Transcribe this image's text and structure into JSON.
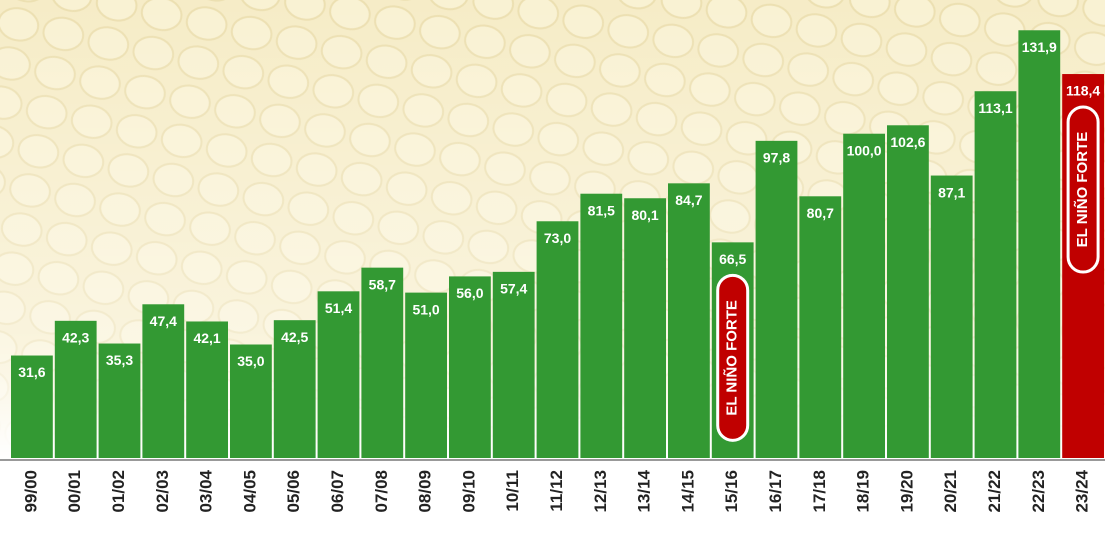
{
  "chart_data": {
    "type": "bar",
    "categories": [
      "99/00",
      "00/01",
      "01/02",
      "02/03",
      "03/04",
      "04/05",
      "05/06",
      "06/07",
      "07/08",
      "08/09",
      "09/10",
      "10/11",
      "11/12",
      "12/13",
      "13/14",
      "14/15",
      "15/16",
      "16/17",
      "17/18",
      "18/19",
      "19/20",
      "20/21",
      "21/22",
      "22/23",
      "23/24"
    ],
    "values": [
      31.6,
      42.3,
      35.3,
      47.4,
      42.1,
      35.0,
      42.5,
      51.4,
      58.7,
      51.0,
      56.0,
      57.4,
      73.0,
      81.5,
      80.1,
      84.7,
      66.5,
      97.8,
      80.7,
      100.0,
      102.6,
      87.1,
      113.1,
      131.9,
      118.4
    ],
    "value_labels": [
      "31,6",
      "42,3",
      "35,3",
      "47,4",
      "42,1",
      "35,0",
      "42,5",
      "51,4",
      "58,7",
      "51,0",
      "56,0",
      "57,4",
      "73,0",
      "81,5",
      "80,1",
      "84,7",
      "66,5",
      "97,8",
      "80,7",
      "100,0",
      "102,6",
      "87,1",
      "113,1",
      "131,9",
      "118,4"
    ],
    "colors": [
      "#339933",
      "#339933",
      "#339933",
      "#339933",
      "#339933",
      "#339933",
      "#339933",
      "#339933",
      "#339933",
      "#339933",
      "#339933",
      "#339933",
      "#339933",
      "#339933",
      "#339933",
      "#339933",
      "#339933",
      "#339933",
      "#339933",
      "#339933",
      "#339933",
      "#339933",
      "#339933",
      "#339933",
      "#c00000"
    ],
    "ylim": [
      0,
      140
    ],
    "annotations": [
      {
        "text": "EL NIÑO FORTE",
        "category": "15/16"
      },
      {
        "text": "EL NIÑO FORTE",
        "category": "23/24"
      }
    ]
  }
}
